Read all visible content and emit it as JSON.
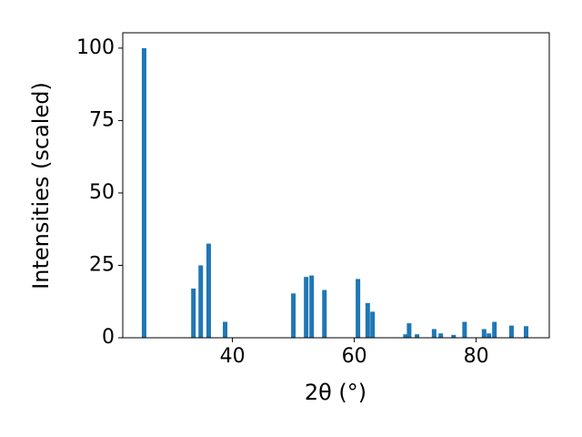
{
  "chart_data": {
    "type": "bar",
    "x_label": "2θ (°)",
    "y_label": "Intensities (scaled)",
    "x": [
      25.5,
      33.6,
      34.8,
      36.1,
      38.8,
      50.0,
      52.1,
      53.0,
      55.1,
      60.6,
      62.2,
      63.0,
      68.4,
      69.0,
      70.3,
      73.1,
      74.2,
      76.3,
      78.1,
      81.3,
      82.1,
      83.0,
      85.8,
      88.2
    ],
    "values": [
      100,
      17,
      25,
      32.5,
      5.5,
      15.3,
      21,
      21.5,
      16.5,
      20.3,
      12,
      9,
      1.2,
      5,
      1.2,
      3,
      1.5,
      1,
      5.5,
      3,
      1.5,
      5.5,
      4.2,
      4
    ],
    "color": "#1f77b4",
    "xlim": [
      22,
      92
    ],
    "xticks": [
      40,
      60,
      80
    ],
    "ylim": [
      0,
      105.3
    ],
    "yticks": [
      0,
      25,
      50,
      75,
      100
    ]
  }
}
